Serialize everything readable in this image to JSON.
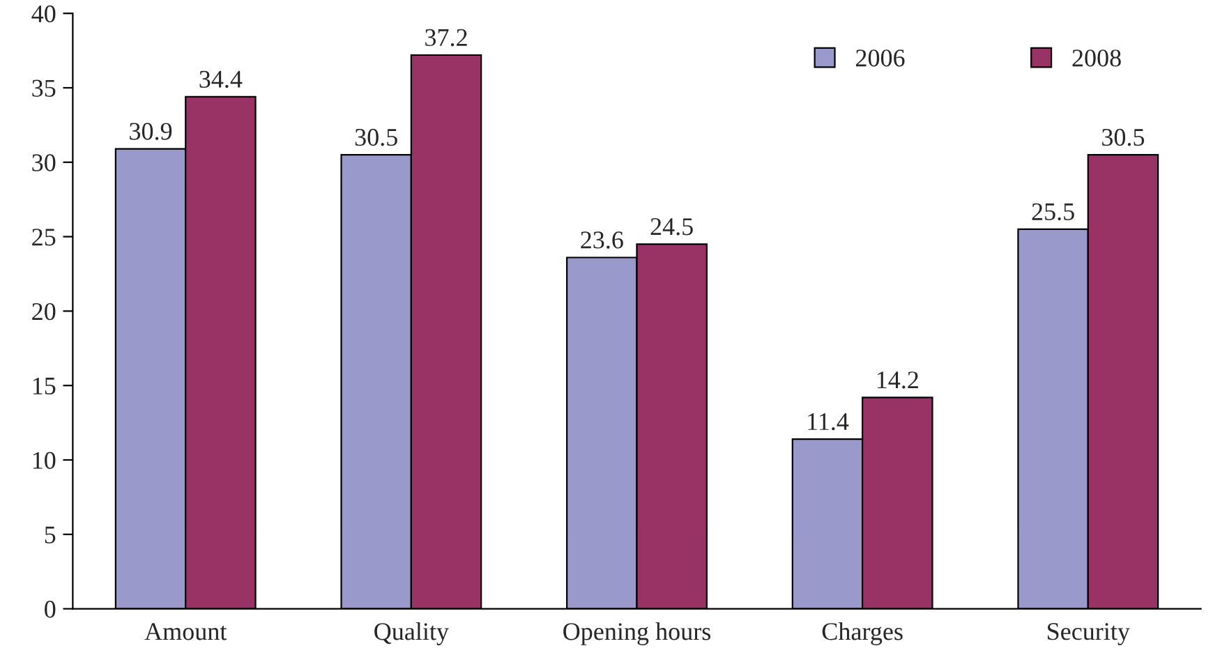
{
  "chart_data": {
    "type": "bar",
    "categories": [
      "Amount",
      "Quality",
      "Opening hours",
      "Charges",
      "Security"
    ],
    "series": [
      {
        "name": "2006",
        "color": "#9999cc",
        "values": [
          30.9,
          30.5,
          23.6,
          11.4,
          25.5
        ]
      },
      {
        "name": "2008",
        "color": "#993366",
        "values": [
          34.4,
          37.2,
          24.5,
          14.2,
          30.5
        ]
      }
    ],
    "ylim": [
      0,
      40
    ],
    "yticks": [
      0,
      5,
      10,
      15,
      20,
      25,
      30,
      35,
      40
    ],
    "data_labels": true,
    "grid": false,
    "legend": "top right"
  }
}
